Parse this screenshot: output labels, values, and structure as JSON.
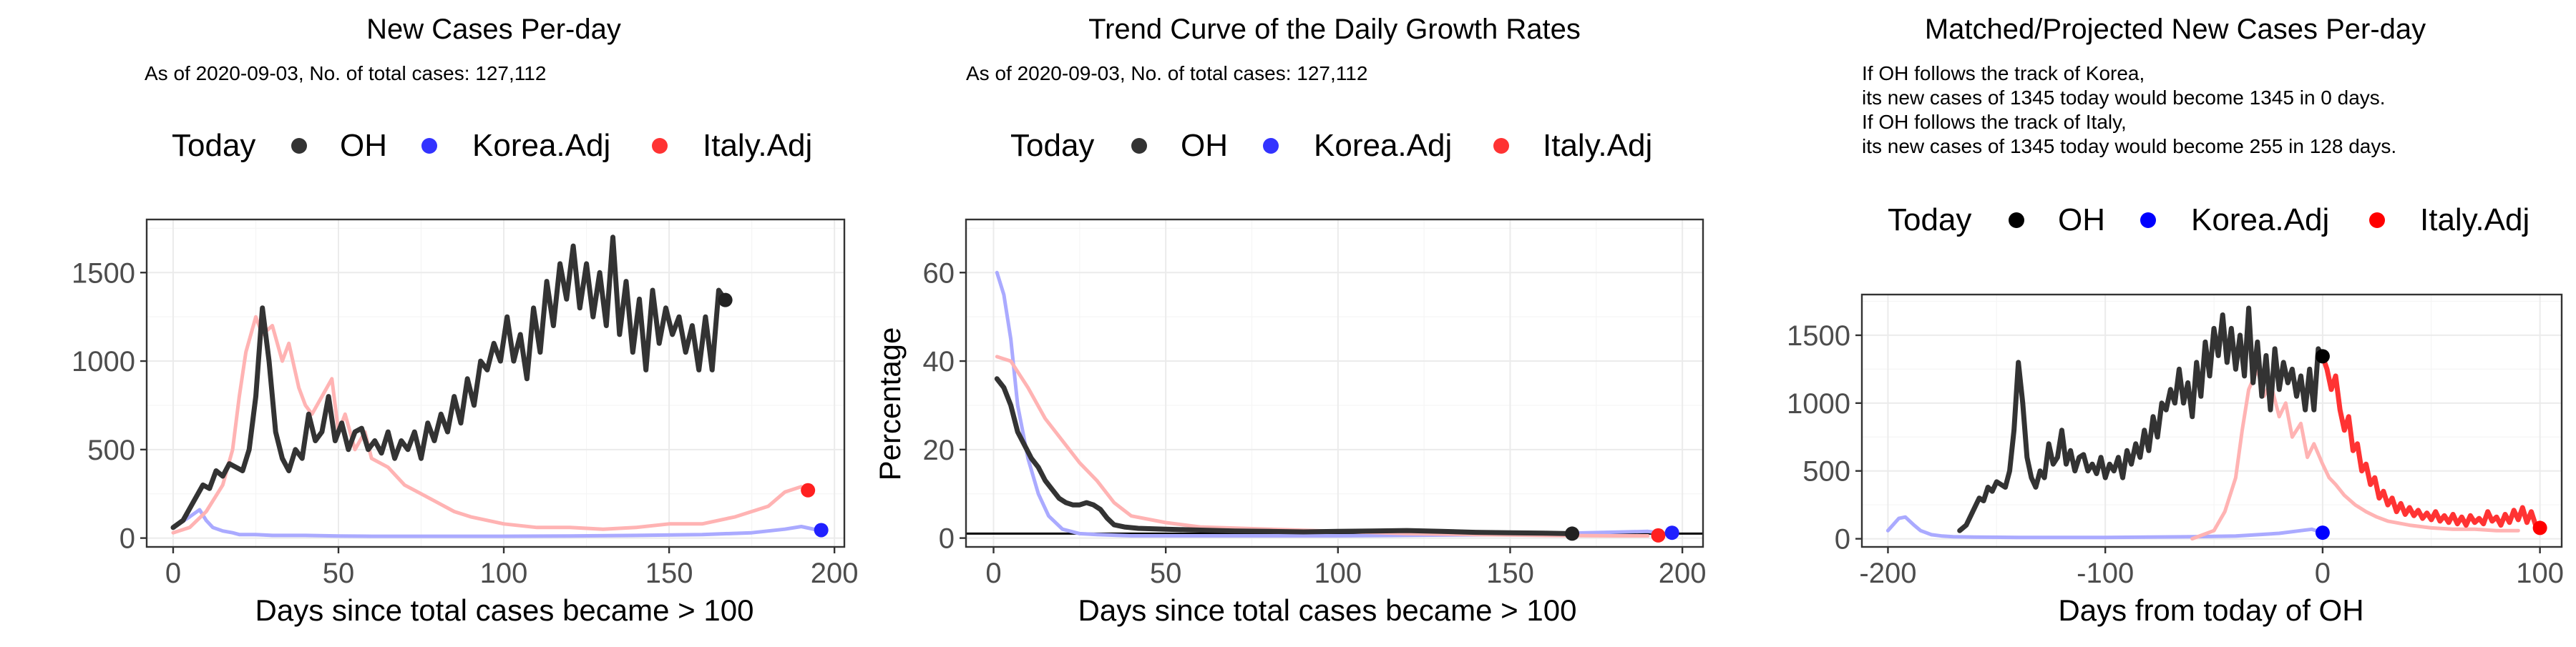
{
  "chart_data": [
    {
      "type": "line",
      "title": "New Cases Per-day",
      "subtitle": "As of 2020-09-03, No. of total cases: 127,112",
      "legend_title": "Today",
      "legend": [
        {
          "label": "OH",
          "color": "#333333"
        },
        {
          "label": "Korea.Adj",
          "color": "#3333ff"
        },
        {
          "label": "Italy.Adj",
          "color": "#ff3333"
        }
      ],
      "xlabel": "Days since total cases became > 100",
      "ylabel": "",
      "xlim": [
        -8,
        203
      ],
      "ylim": [
        -50,
        1800
      ],
      "xticks": [
        0,
        50,
        100,
        150,
        200
      ],
      "yticks": [
        0,
        500,
        1000,
        1500
      ],
      "series": [
        {
          "name": "Korea.Adj",
          "color": "#aaaaff",
          "width": 5,
          "x": [
            0,
            5,
            8,
            10,
            12,
            15,
            18,
            20,
            25,
            30,
            40,
            50,
            60,
            80,
            100,
            120,
            140,
            160,
            175,
            185,
            190,
            195
          ],
          "y": [
            60,
            120,
            160,
            100,
            60,
            40,
            30,
            20,
            20,
            15,
            15,
            12,
            10,
            10,
            10,
            12,
            15,
            20,
            30,
            50,
            65,
            45
          ]
        },
        {
          "name": "Italy.Adj",
          "color": "#ffb3b3",
          "width": 5,
          "x": [
            0,
            5,
            10,
            15,
            18,
            20,
            22,
            25,
            27,
            30,
            33,
            35,
            38,
            40,
            42,
            45,
            48,
            50,
            52,
            55,
            58,
            60,
            65,
            70,
            75,
            80,
            85,
            90,
            100,
            110,
            120,
            130,
            140,
            150,
            160,
            170,
            180,
            185,
            190
          ],
          "y": [
            30,
            60,
            150,
            300,
            500,
            800,
            1050,
            1250,
            1150,
            1200,
            1000,
            1100,
            850,
            750,
            700,
            800,
            900,
            600,
            700,
            500,
            600,
            450,
            400,
            300,
            250,
            200,
            150,
            120,
            80,
            60,
            60,
            50,
            60,
            80,
            80,
            120,
            180,
            260,
            290
          ]
        },
        {
          "name": "OH",
          "color": "#333333",
          "width": 7,
          "x": [
            0,
            3,
            6,
            9,
            11,
            13,
            15,
            17,
            19,
            21,
            23,
            25,
            27,
            29,
            31,
            33,
            35,
            37,
            39,
            41,
            43,
            45,
            47,
            49,
            51,
            53,
            55,
            57,
            59,
            61,
            63,
            65,
            67,
            69,
            71,
            73,
            75,
            77,
            79,
            81,
            83,
            85,
            87,
            89,
            91,
            93,
            95,
            97,
            99,
            101,
            103,
            105,
            107,
            109,
            111,
            113,
            115,
            117,
            119,
            121,
            123,
            125,
            127,
            129,
            131,
            133,
            135,
            137,
            139,
            141,
            143,
            145,
            147,
            149,
            151,
            153,
            155,
            157,
            159,
            161,
            163,
            165,
            167
          ],
          "y": [
            60,
            100,
            200,
            300,
            280,
            380,
            350,
            420,
            400,
            380,
            500,
            800,
            1300,
            1000,
            600,
            450,
            380,
            500,
            450,
            700,
            550,
            600,
            800,
            550,
            650,
            500,
            600,
            620,
            500,
            550,
            480,
            600,
            450,
            550,
            500,
            600,
            450,
            650,
            550,
            700,
            600,
            800,
            650,
            900,
            750,
            1000,
            950,
            1100,
            1000,
            1250,
            1000,
            1150,
            900,
            1300,
            1050,
            1450,
            1200,
            1550,
            1350,
            1650,
            1300,
            1550,
            1250,
            1500,
            1200,
            1700,
            1150,
            1450,
            1050,
            1350,
            950,
            1400,
            1100,
            1300,
            1150,
            1250,
            1050,
            1200,
            950,
            1250,
            950,
            1400,
            1345
          ]
        }
      ],
      "points": [
        {
          "name": "OH",
          "x": 167,
          "y": 1345,
          "color": "#222222"
        },
        {
          "name": "Italy.Adj",
          "x": 192,
          "y": 270,
          "color": "#ff2020"
        },
        {
          "name": "Korea.Adj",
          "x": 196,
          "y": 45,
          "color": "#2020ff"
        }
      ],
      "hline": null
    },
    {
      "type": "line",
      "title": "Trend Curve of the Daily Growth Rates",
      "subtitle": "As of 2020-09-03, No. of total cases: 127,112",
      "legend_title": "Today",
      "legend": [
        {
          "label": "OH",
          "color": "#333333"
        },
        {
          "label": "Korea.Adj",
          "color": "#3333ff"
        },
        {
          "label": "Italy.Adj",
          "color": "#ff3333"
        }
      ],
      "xlabel": "Days since total cases became > 100",
      "ylabel": "Percentage",
      "xlim": [
        -8,
        206
      ],
      "ylim": [
        -2,
        72
      ],
      "xticks": [
        0,
        50,
        100,
        150,
        200
      ],
      "yticks": [
        0,
        20,
        40,
        60
      ],
      "series": [
        {
          "name": "Korea.Adj",
          "color": "#aaaaff",
          "width": 5,
          "x": [
            1,
            3,
            5,
            7,
            10,
            13,
            16,
            20,
            25,
            30,
            40,
            60,
            100,
            150,
            190,
            195
          ],
          "y": [
            60,
            55,
            45,
            30,
            18,
            10,
            5,
            2,
            1,
            0.8,
            0.5,
            0.5,
            0.5,
            0.8,
            1.5,
            1
          ]
        },
        {
          "name": "Italy.Adj",
          "color": "#ffb3b3",
          "width": 5,
          "x": [
            1,
            5,
            10,
            15,
            20,
            25,
            30,
            35,
            40,
            50,
            60,
            80,
            100,
            120,
            140,
            160,
            180,
            190
          ],
          "y": [
            41,
            40,
            34,
            27,
            22,
            17,
            13,
            8,
            5,
            3.5,
            2.5,
            2,
            1.5,
            1,
            0.8,
            0.6,
            0.5,
            0.5
          ]
        },
        {
          "name": "OH",
          "color": "#333333",
          "width": 7,
          "x": [
            1,
            3,
            5,
            7,
            9,
            11,
            13,
            15,
            17,
            19,
            21,
            23,
            25,
            27,
            29,
            31,
            33,
            35,
            38,
            42,
            50,
            60,
            70,
            80,
            90,
            100,
            110,
            120,
            130,
            140,
            150,
            160,
            167
          ],
          "y": [
            36,
            34,
            30,
            24,
            21,
            18,
            16,
            13,
            11,
            9,
            8,
            7.5,
            7.5,
            8,
            7.5,
            6.5,
            4.5,
            3,
            2.5,
            2.2,
            2,
            1.8,
            1.6,
            1.5,
            1.4,
            1.5,
            1.6,
            1.7,
            1.5,
            1.3,
            1.2,
            1.1,
            1
          ]
        }
      ],
      "points": [
        {
          "name": "OH",
          "x": 168,
          "y": 1,
          "color": "#222222"
        },
        {
          "name": "Italy.Adj",
          "x": 193,
          "y": 0.6,
          "color": "#ff2020"
        },
        {
          "name": "Korea.Adj",
          "x": 197,
          "y": 1.2,
          "color": "#2020ff"
        }
      ],
      "hline": 1
    },
    {
      "type": "line",
      "title": "Matched/Projected New Cases Per-day",
      "annotation": [
        "If OH follows the track of Korea,",
        "its new cases of 1345 today would become 1345 in 0 days.",
        "If OH follows the track of Italy,",
        "its new cases of 1345 today would become 255 in 128 days."
      ],
      "legend_title": "Today",
      "legend": [
        {
          "label": "OH",
          "color": "#000000"
        },
        {
          "label": "Korea.Adj",
          "color": "#0000ff"
        },
        {
          "label": "Italy.Adj",
          "color": "#ff0000"
        }
      ],
      "xlabel": "Days from today of OH",
      "ylabel": "",
      "xlim": [
        -212,
        110
      ],
      "ylim": [
        -60,
        1800
      ],
      "xticks": [
        -200,
        -100,
        0,
        100
      ],
      "yticks": [
        0,
        500,
        1000,
        1500
      ],
      "series": [
        {
          "name": "Korea.Adj",
          "color": "#aaaaff",
          "width": 5,
          "x": [
            -200,
            -195,
            -192,
            -188,
            -185,
            -180,
            -175,
            -170,
            -160,
            -140,
            -120,
            -100,
            -80,
            -60,
            -40,
            -20,
            -10,
            -5,
            0
          ],
          "y": [
            60,
            150,
            160,
            100,
            60,
            30,
            20,
            15,
            12,
            10,
            10,
            10,
            12,
            15,
            20,
            40,
            60,
            70,
            45
          ]
        },
        {
          "name": "Italy.Adj",
          "color": "#ffb3b3",
          "width": 5,
          "x": [
            -60,
            -50,
            -45,
            -40,
            -37,
            -34,
            -30,
            -27,
            -24,
            -20,
            -17,
            -14,
            -10,
            -7,
            -4,
            0,
            3,
            6,
            10,
            15,
            20,
            25,
            30,
            40,
            50,
            60,
            70,
            80,
            90
          ],
          "y": [
            0,
            60,
            200,
            450,
            800,
            1100,
            1250,
            1050,
            1150,
            900,
            1000,
            750,
            850,
            600,
            700,
            550,
            450,
            400,
            320,
            250,
            200,
            160,
            130,
            100,
            80,
            70,
            70,
            60,
            60
          ]
        },
        {
          "name": "OH",
          "color": "#333333",
          "width": 7,
          "x": [
            -167,
            -164,
            -161,
            -158,
            -156,
            -154,
            -152,
            -150,
            -148,
            -146,
            -144,
            -142,
            -140,
            -138,
            -136,
            -134,
            -132,
            -130,
            -128,
            -126,
            -124,
            -122,
            -120,
            -118,
            -116,
            -114,
            -112,
            -110,
            -108,
            -106,
            -104,
            -102,
            -100,
            -98,
            -96,
            -94,
            -92,
            -90,
            -88,
            -86,
            -84,
            -82,
            -80,
            -78,
            -76,
            -74,
            -72,
            -70,
            -68,
            -66,
            -64,
            -62,
            -60,
            -58,
            -56,
            -54,
            -52,
            -50,
            -48,
            -46,
            -44,
            -42,
            -40,
            -38,
            -36,
            -34,
            -32,
            -30,
            -28,
            -26,
            -24,
            -22,
            -20,
            -18,
            -16,
            -14,
            -12,
            -10,
            -8,
            -6,
            -4,
            -2,
            0
          ],
          "y": [
            60,
            100,
            200,
            300,
            280,
            380,
            350,
            420,
            400,
            380,
            500,
            800,
            1300,
            1000,
            600,
            450,
            380,
            500,
            450,
            700,
            550,
            600,
            800,
            550,
            650,
            500,
            600,
            620,
            500,
            550,
            480,
            600,
            450,
            550,
            500,
            600,
            450,
            650,
            550,
            700,
            600,
            800,
            650,
            900,
            750,
            1000,
            950,
            1100,
            1000,
            1250,
            1000,
            1150,
            900,
            1300,
            1050,
            1450,
            1200,
            1550,
            1350,
            1650,
            1300,
            1550,
            1250,
            1500,
            1200,
            1700,
            1150,
            1450,
            1050,
            1350,
            950,
            1400,
            1100,
            1300,
            1150,
            1250,
            1050,
            1200,
            950,
            1250,
            950,
            1400,
            1345
          ]
        },
        {
          "name": "Italy.Adj projected",
          "color": "#ff3333",
          "width": 7,
          "x": [
            0,
            2,
            4,
            6,
            8,
            10,
            12,
            14,
            16,
            18,
            20,
            22,
            24,
            26,
            28,
            30,
            32,
            34,
            36,
            38,
            40,
            42,
            44,
            46,
            48,
            50,
            52,
            54,
            56,
            58,
            60,
            62,
            64,
            66,
            68,
            70,
            72,
            74,
            76,
            78,
            80,
            82,
            84,
            86,
            88,
            90,
            92,
            94,
            96,
            98,
            100
          ],
          "y": [
            1345,
            1250,
            1100,
            1200,
            950,
            800,
            900,
            650,
            700,
            500,
            550,
            400,
            450,
            300,
            350,
            250,
            300,
            200,
            260,
            180,
            230,
            170,
            210,
            150,
            190,
            140,
            200,
            130,
            170,
            120,
            180,
            110,
            160,
            100,
            170,
            120,
            150,
            110,
            200,
            130,
            160,
            100,
            180,
            120,
            210,
            140,
            230,
            120,
            200,
            100,
            80
          ]
        }
      ],
      "points": [
        {
          "name": "OH",
          "x": 0,
          "y": 1345,
          "color": "#000000"
        },
        {
          "name": "Korea.Adj",
          "x": 0,
          "y": 45,
          "color": "#0000ff"
        },
        {
          "name": "Italy.Adj",
          "x": 100,
          "y": 80,
          "color": "#ff0000"
        }
      ],
      "hline": null
    }
  ]
}
